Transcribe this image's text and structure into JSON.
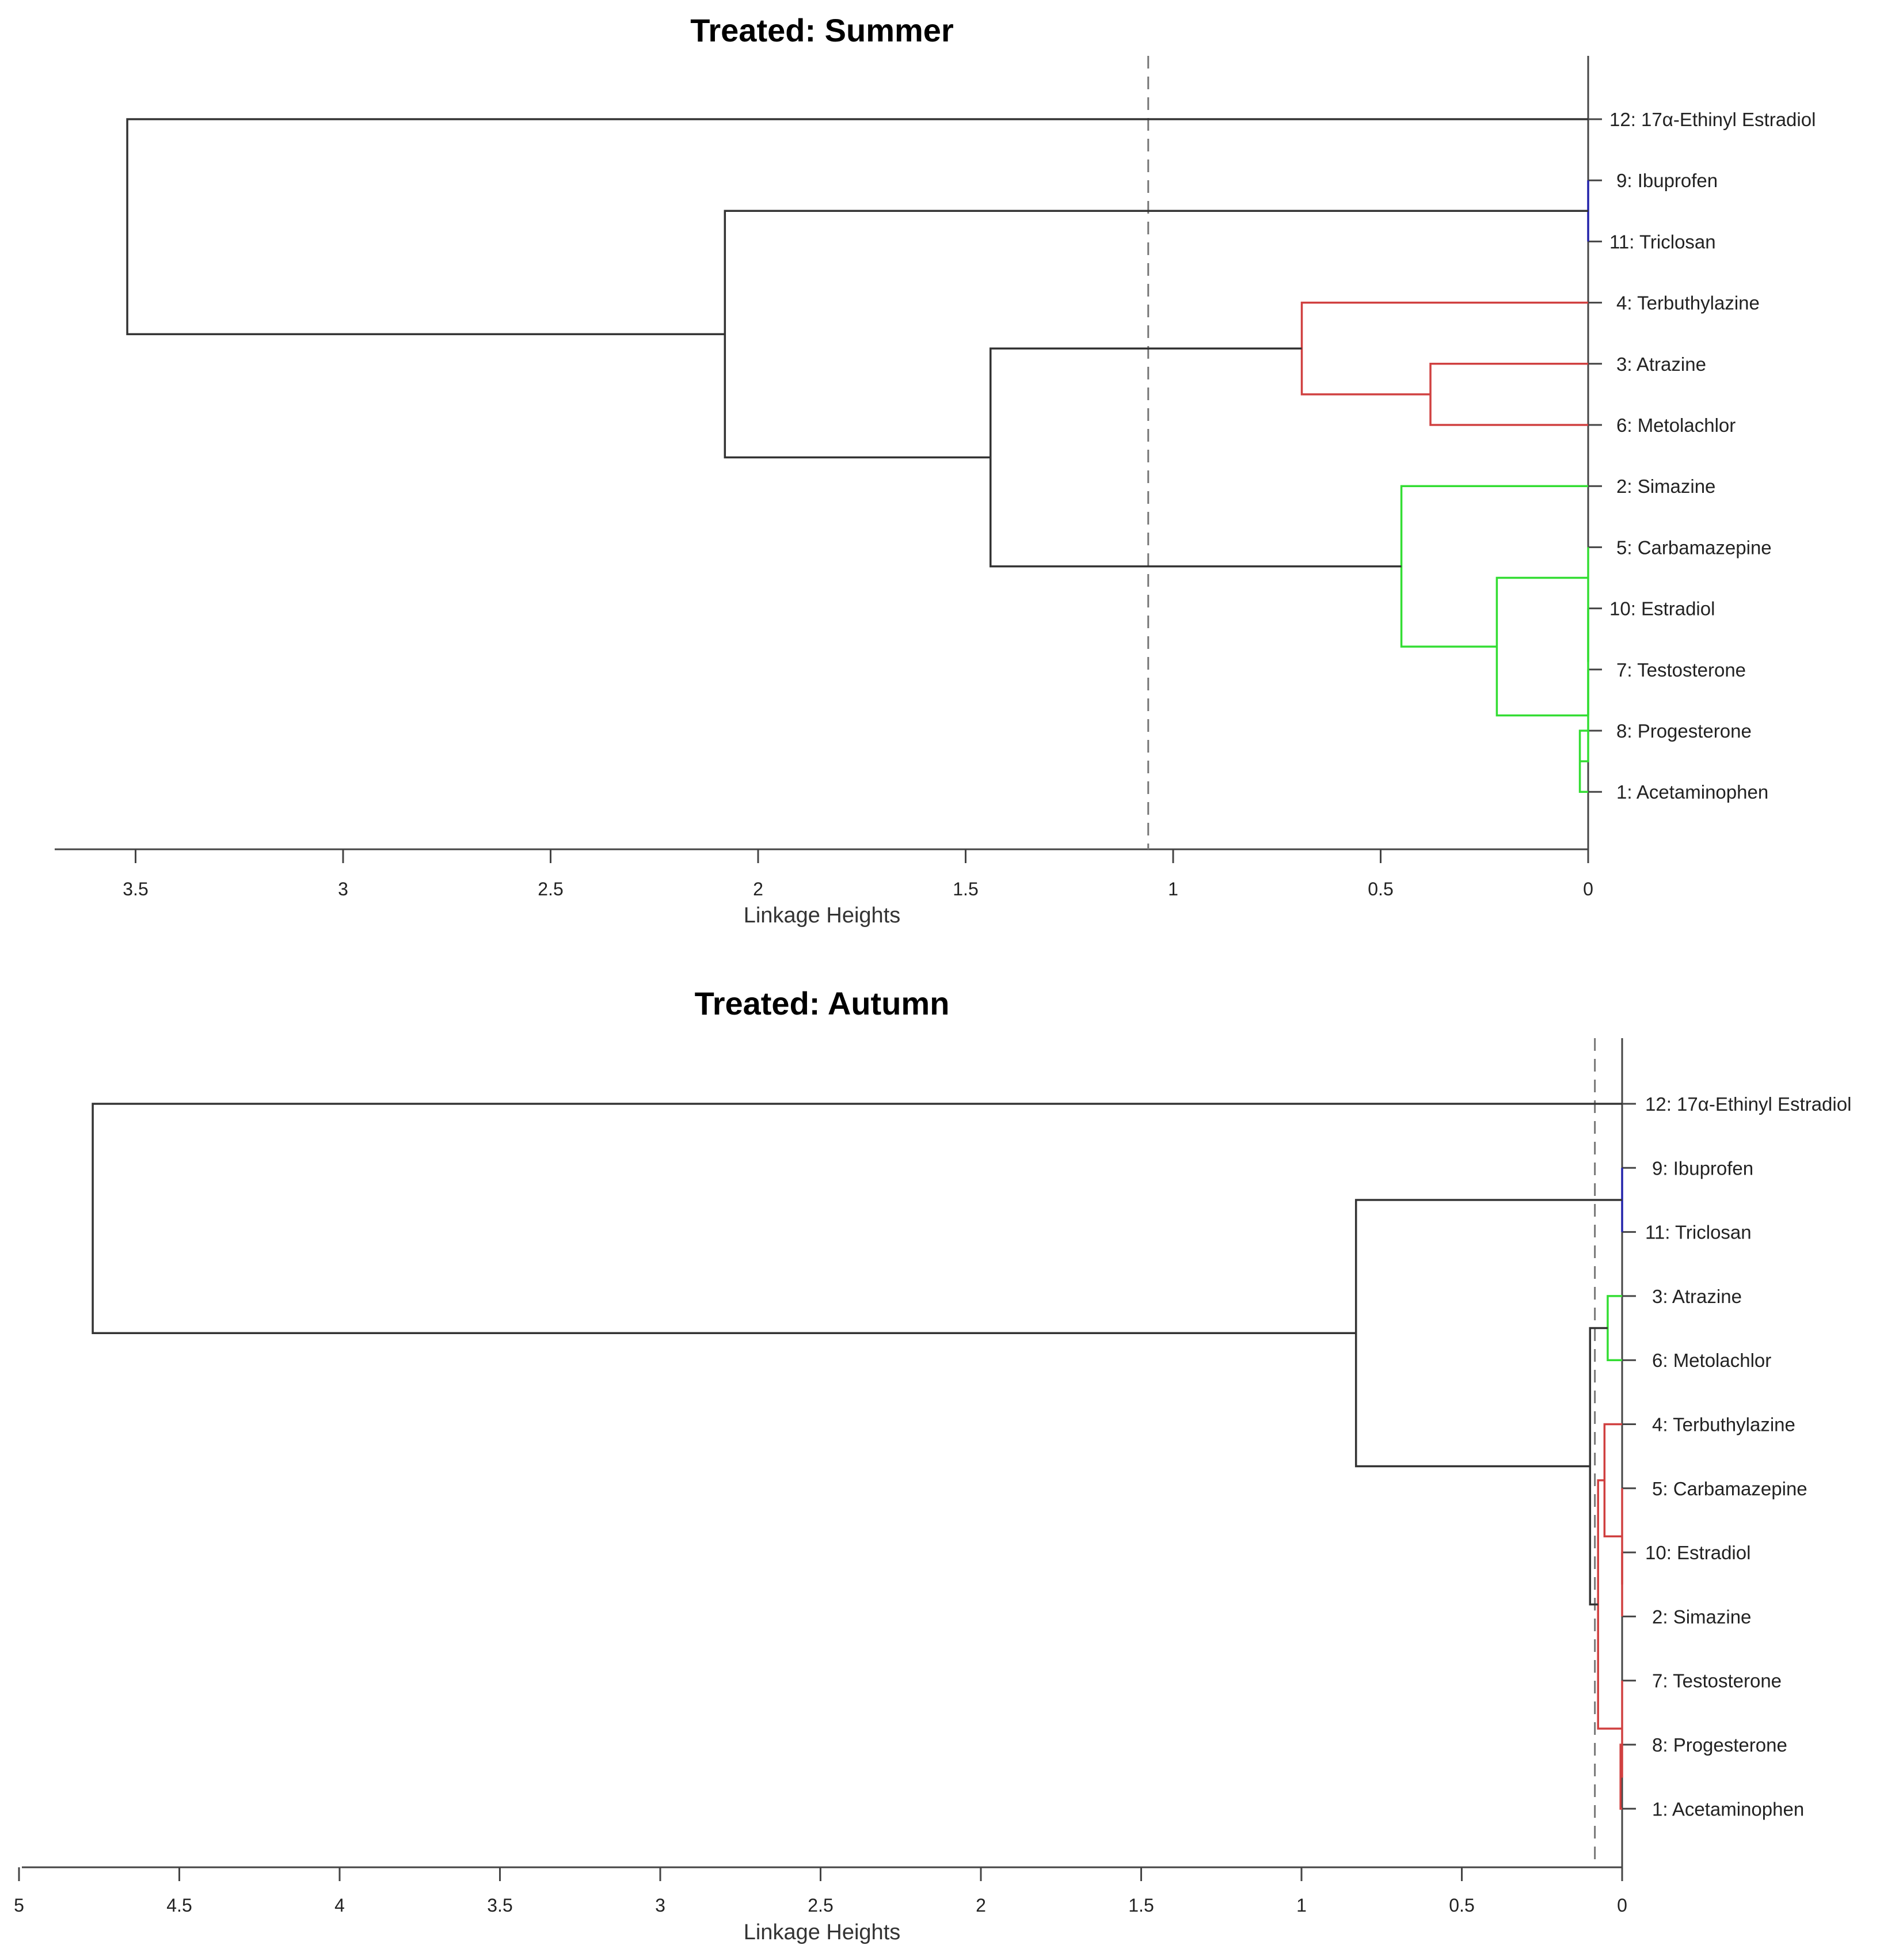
{
  "chart_data": [
    {
      "type": "dendrogram",
      "orientation": "horizontal",
      "title": "Treated: Summer",
      "xlabel": "Linkage Heights",
      "xlim": [
        3.7,
        0
      ],
      "ticks": [
        "3.5",
        "3",
        "2.5",
        "2",
        "1.5",
        "1",
        "0.5",
        "0"
      ],
      "tick_values": [
        3.5,
        3,
        2.5,
        2,
        1.5,
        1,
        0.5,
        0
      ],
      "cutoff": 1.06,
      "colors": {
        "black": "#333333",
        "blue": "#2222aa",
        "red": "#d04040",
        "green": "#33dd33"
      },
      "leaves": [
        {
          "id": 12,
          "label": "12: 17α-Ethinyl Estradiol"
        },
        {
          "id": 9,
          "label": "9: Ibuprofen"
        },
        {
          "id": 11,
          "label": "11: Triclosan"
        },
        {
          "id": 4,
          "label": "4: Terbuthylazine"
        },
        {
          "id": 3,
          "label": "3: Atrazine"
        },
        {
          "id": 6,
          "label": "6: Metolachlor"
        },
        {
          "id": 2,
          "label": "2: Simazine"
        },
        {
          "id": 5,
          "label": "5: Carbamazepine"
        },
        {
          "id": 10,
          "label": "10: Estradiol"
        },
        {
          "id": 7,
          "label": "7: Testosterone"
        },
        {
          "id": 8,
          "label": "8: Progesterone"
        },
        {
          "id": 1,
          "label": "1: Acetaminophen"
        }
      ],
      "merges": [
        {
          "children": [
            9,
            11
          ],
          "height": 0.0,
          "color": "blue"
        },
        {
          "children": [
            3,
            6
          ],
          "height": 0.38,
          "color": "red"
        },
        {
          "children": [
            4,
            "3+6"
          ],
          "height": 0.69,
          "color": "red"
        },
        {
          "children": [
            8,
            1
          ],
          "height": 0.02,
          "color": "green"
        },
        {
          "children": [
            7,
            "8+1"
          ],
          "height": 0.0,
          "color": "green"
        },
        {
          "children": [
            10,
            "7+8+1"
          ],
          "height": 0.0,
          "color": "green"
        },
        {
          "children": [
            5,
            "10+7+8+1"
          ],
          "height": 0.0,
          "color": "green"
        },
        {
          "children": [
            "5+10+7+8+1"
          ],
          "height": 0.22,
          "color": "green"
        },
        {
          "children": [
            2,
            "group"
          ],
          "height": 0.45,
          "color": "green"
        },
        {
          "children": [
            "red-cluster",
            "green-cluster"
          ],
          "height": 1.44,
          "color": "black"
        },
        {
          "children": [
            "blue-cluster",
            "rest"
          ],
          "height": 2.08,
          "color": "black"
        },
        {
          "children": [
            12,
            "all"
          ],
          "height": 3.52,
          "color": "black"
        }
      ]
    },
    {
      "type": "dendrogram",
      "orientation": "horizontal",
      "title": "Treated: Autumn",
      "xlabel": "Linkage Heights",
      "xlim": [
        5,
        0
      ],
      "ticks": [
        "5",
        "4.5",
        "4",
        "3.5",
        "3",
        "2.5",
        "2",
        "1.5",
        "1",
        "0.5",
        "0"
      ],
      "tick_values": [
        5,
        4.5,
        4,
        3.5,
        3,
        2.5,
        2,
        1.5,
        1,
        0.5,
        0
      ],
      "cutoff": 0.085,
      "colors": {
        "black": "#333333",
        "blue": "#2222aa",
        "red": "#d04040",
        "green": "#33dd33"
      },
      "leaves": [
        {
          "id": 12,
          "label": "12: 17α-Ethinyl Estradiol"
        },
        {
          "id": 9,
          "label": "9: Ibuprofen"
        },
        {
          "id": 11,
          "label": "11: Triclosan"
        },
        {
          "id": 3,
          "label": "3: Atrazine"
        },
        {
          "id": 6,
          "label": "6: Metolachlor"
        },
        {
          "id": 4,
          "label": "4: Terbuthylazine"
        },
        {
          "id": 5,
          "label": "5: Carbamazepine"
        },
        {
          "id": 10,
          "label": "10: Estradiol"
        },
        {
          "id": 2,
          "label": "2: Simazine"
        },
        {
          "id": 7,
          "label": "7: Testosterone"
        },
        {
          "id": 8,
          "label": "8: Progesterone"
        },
        {
          "id": 1,
          "label": "1: Acetaminophen"
        }
      ],
      "merges": [
        {
          "children": [
            9,
            11
          ],
          "height": 0.0,
          "color": "blue"
        },
        {
          "children": [
            3,
            6
          ],
          "height": 0.045,
          "color": "green"
        },
        {
          "children": [
            10,
            2
          ],
          "height": 0.0,
          "color": "red"
        },
        {
          "children": [
            5,
            "10+2"
          ],
          "height": 0.0,
          "color": "red"
        },
        {
          "children": [
            4,
            "5+10+2"
          ],
          "height": 0.055,
          "color": "red"
        },
        {
          "children": [
            8,
            1
          ],
          "height": 0.005,
          "color": "red"
        },
        {
          "children": [
            7,
            "8+1"
          ],
          "height": 0.0,
          "color": "red"
        },
        {
          "children": [
            "4+5+10+2",
            "7+8+1"
          ],
          "height": 0.075,
          "color": "red"
        },
        {
          "children": [
            "green-cluster",
            "red-cluster"
          ],
          "height": 0.1,
          "color": "black"
        },
        {
          "children": [
            "blue-cluster",
            "rest"
          ],
          "height": 0.83,
          "color": "black"
        },
        {
          "children": [
            12,
            "all"
          ],
          "height": 4.77,
          "color": "black"
        }
      ]
    }
  ]
}
